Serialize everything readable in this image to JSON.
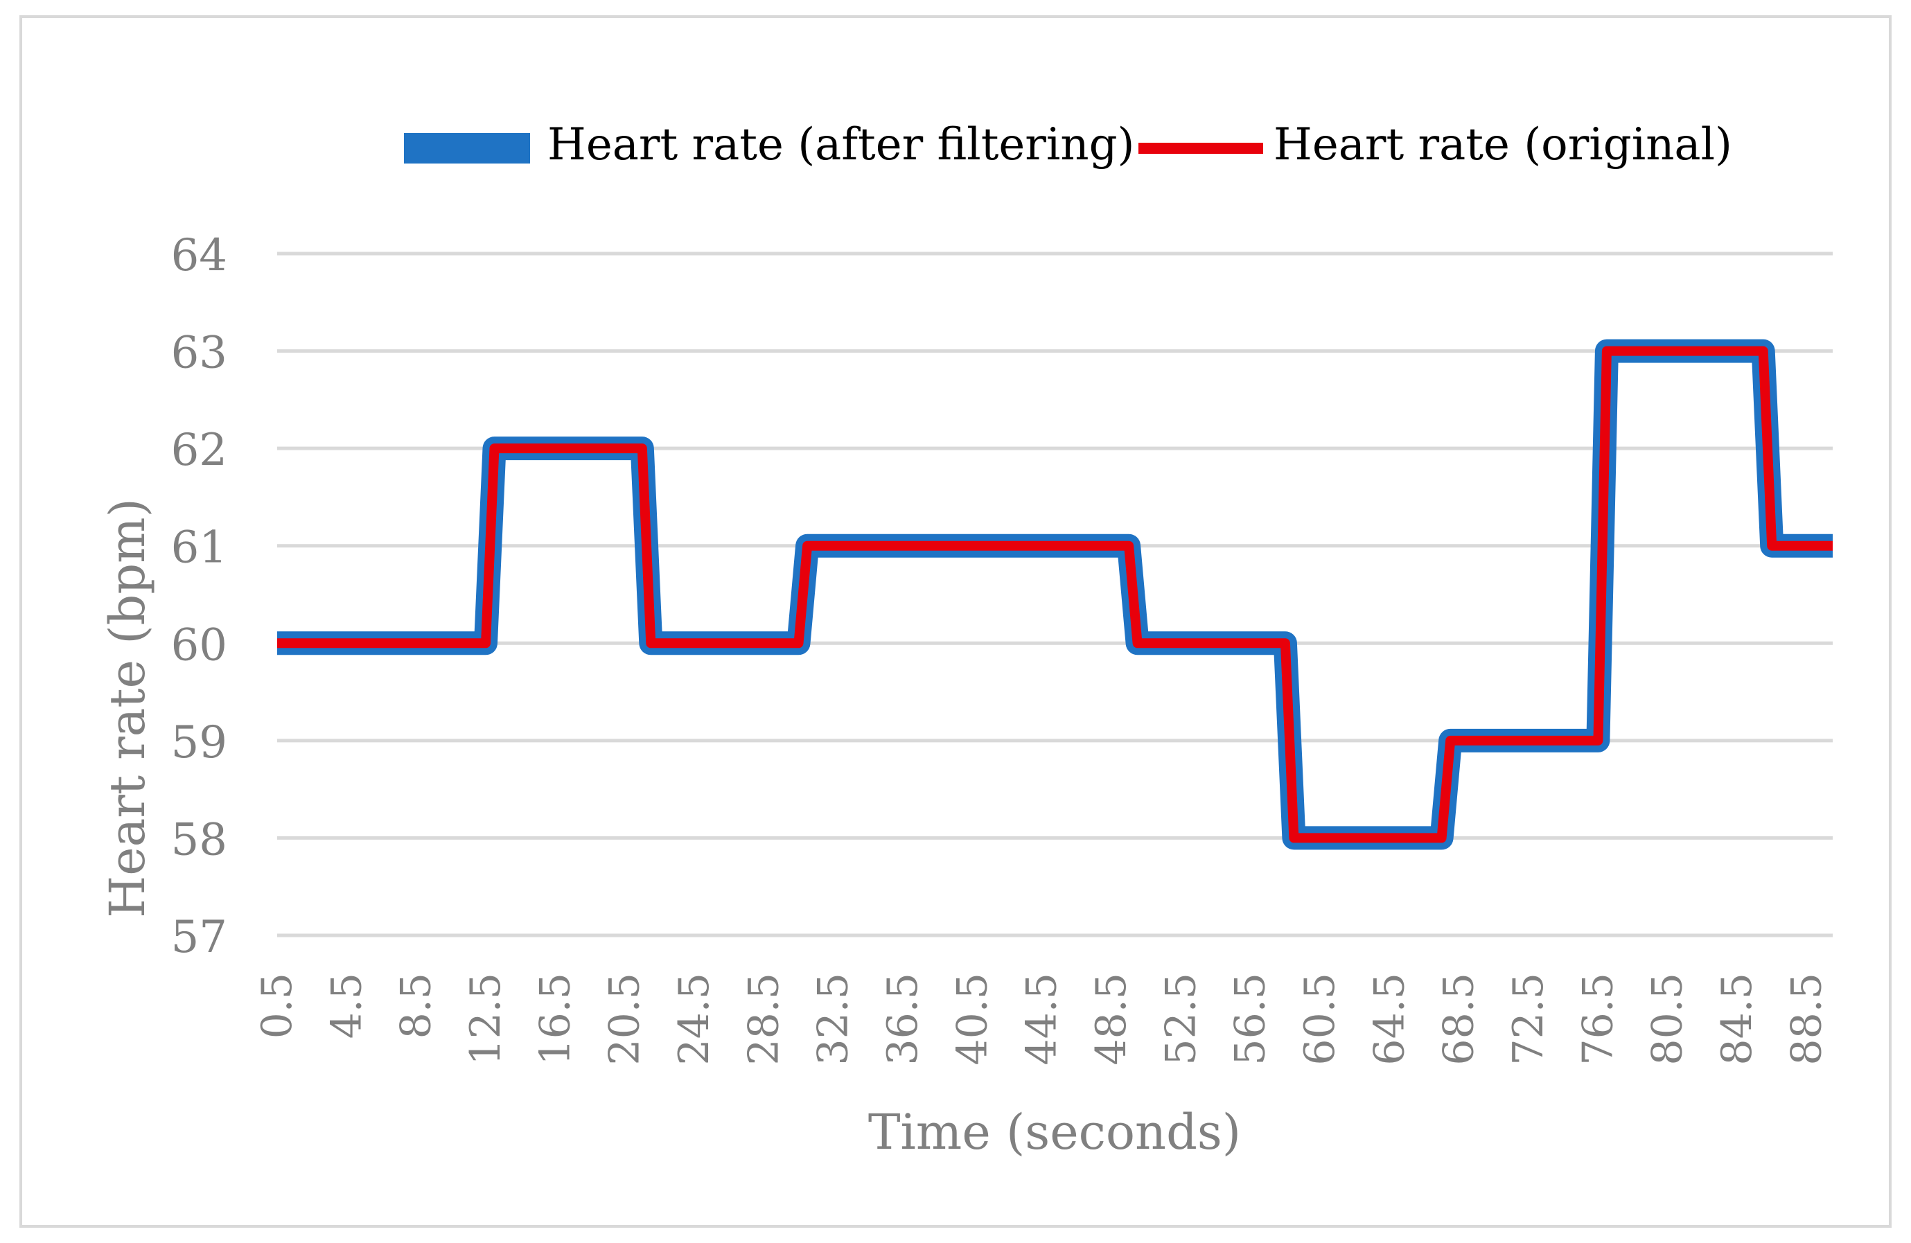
{
  "chart_data": {
    "type": "line",
    "title": "",
    "xlabel": "Time (seconds)",
    "ylabel": "Heart rate (bpm)",
    "ylim": [
      57,
      64
    ],
    "yticks": [
      "57",
      "58",
      "59",
      "60",
      "61",
      "62",
      "63",
      "64"
    ],
    "xticks": [
      "0.5",
      "4.5",
      "8.5",
      "12.5",
      "16.5",
      "20.5",
      "24.5",
      "28.5",
      "32.5",
      "36.5",
      "40.5",
      "44.5",
      "48.5",
      "52.5",
      "56.5",
      "60.5",
      "64.5",
      "68.5",
      "72.5",
      "76.5",
      "80.5",
      "84.5",
      "88.5"
    ],
    "xlim": [
      0.5,
      90
    ],
    "grid": true,
    "legend_position": "top",
    "series": [
      {
        "name": "Heart rate (after filtering)",
        "color": "#1f73c4",
        "style": "thick",
        "x": [
          0.5,
          12.5,
          13.0,
          21.5,
          22.0,
          30.5,
          31.0,
          49.5,
          50.0,
          58.5,
          59.0,
          67.5,
          68.0,
          76.5,
          77.0,
          86.0,
          86.5,
          90.0
        ],
        "values": [
          60,
          60,
          62,
          62,
          60,
          60,
          61,
          61,
          60,
          60,
          58,
          58,
          59,
          59,
          63,
          63,
          61,
          61
        ]
      },
      {
        "name": "Heart rate (original)",
        "color": "#e8000b",
        "style": "thin",
        "x": [
          0.5,
          12.5,
          13.0,
          21.5,
          22.0,
          30.5,
          31.0,
          49.5,
          50.0,
          58.5,
          59.0,
          67.5,
          68.0,
          76.5,
          77.0,
          86.0,
          86.5,
          90.0
        ],
        "values": [
          60,
          60,
          62,
          62,
          60,
          60,
          61,
          61,
          60,
          60,
          58,
          58,
          59,
          59,
          63,
          63,
          61,
          61
        ]
      }
    ]
  }
}
